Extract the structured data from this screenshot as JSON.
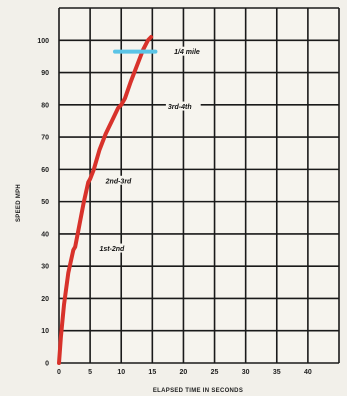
{
  "chart_data": {
    "type": "line",
    "title": "",
    "xlabel": "ELAPSED TIME IN SECONDS",
    "ylabel": "SPEED MPH",
    "xlim": [
      0,
      45
    ],
    "ylim": [
      0,
      110
    ],
    "x_ticks": [
      0,
      5,
      10,
      15,
      20,
      25,
      30,
      35,
      40
    ],
    "y_ticks": [
      0,
      10,
      20,
      30,
      40,
      50,
      60,
      70,
      80,
      90,
      100
    ],
    "grid": true,
    "series": [
      {
        "color": "#d8322b",
        "x": [
          0,
          0.3,
          0.8,
          1.5,
          2.3,
          2.6,
          3.3,
          4.0,
          4.7,
          5.0,
          5.6,
          6.5,
          7.5,
          8.5,
          9.5,
          10.0,
          10.6,
          11.5,
          12.5,
          13.5,
          14.3,
          14.8
        ],
        "y": [
          0,
          8,
          18,
          28,
          35,
          36,
          43,
          50,
          56,
          57,
          60,
          66,
          71,
          75,
          79,
          80,
          82,
          87,
          92,
          97,
          100,
          101
        ]
      }
    ],
    "annotations": [
      {
        "text": "1st-2nd",
        "x": 6.5,
        "y": 35
      },
      {
        "text": "2nd-3rd",
        "x": 7.5,
        "y": 56
      },
      {
        "text": "3rd-4th",
        "x": 17.5,
        "y": 79
      },
      {
        "text": "1/4 mile",
        "x": 18.5,
        "y": 96
      }
    ],
    "marker": {
      "color": "#5bc4e6",
      "y": 96.5,
      "x_start": 9.0,
      "x_end": 15.5
    }
  }
}
